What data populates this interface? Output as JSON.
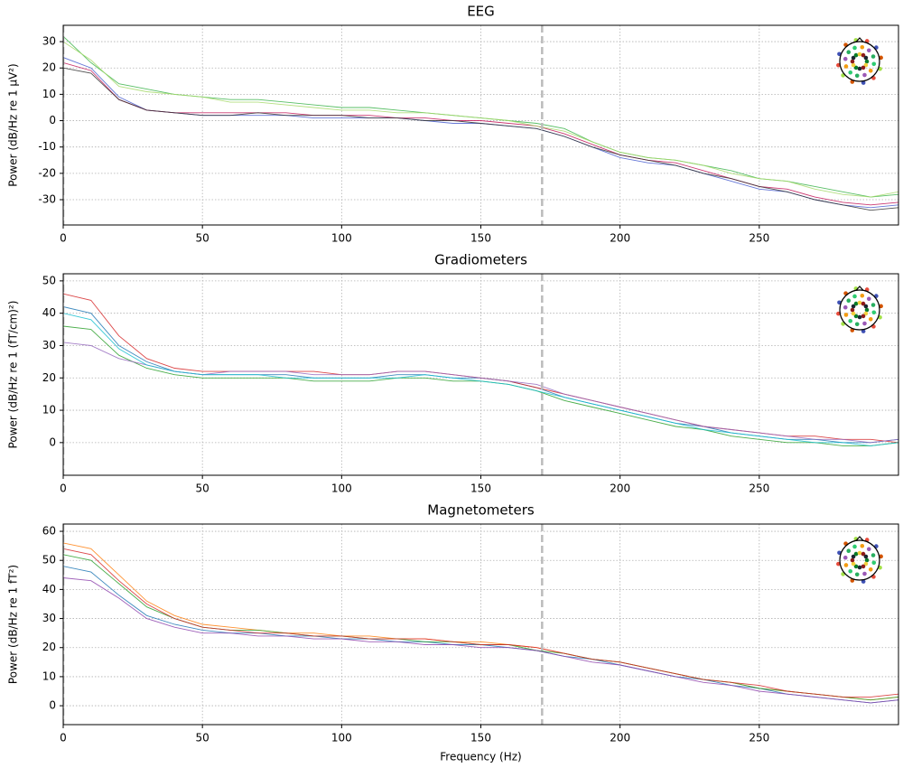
{
  "chart_data": [
    {
      "type": "line",
      "title": "EEG",
      "y_label": "Power (dB/Hz re 1 µV²)",
      "x": [
        0,
        10,
        20,
        30,
        40,
        50,
        60,
        70,
        80,
        90,
        100,
        110,
        120,
        130,
        140,
        150,
        160,
        170,
        180,
        190,
        200,
        210,
        220,
        230,
        240,
        250,
        260,
        270,
        280,
        290,
        300
      ],
      "xlim": [
        0,
        300
      ],
      "xticks": [
        0,
        50,
        100,
        150,
        200,
        250
      ],
      "ylim": [
        -39.6,
        36.2
      ],
      "yticks": [
        -30,
        -20,
        -10,
        0,
        10,
        20,
        30
      ],
      "grid": true,
      "vlines": [
        0,
        172
      ],
      "series": [
        {
          "color": "#3cb44b",
          "values": [
            32,
            22,
            14,
            12,
            10,
            9,
            8,
            8,
            7,
            6,
            5,
            5,
            4,
            3,
            2,
            1,
            0,
            -1,
            -3,
            -8,
            -12,
            -14,
            -15,
            -17,
            -19,
            -22,
            -23,
            -25,
            -27,
            -29,
            -28
          ]
        },
        {
          "color": "#4a5fd0",
          "values": [
            24,
            20,
            9,
            4,
            3,
            2,
            2,
            2,
            2,
            1,
            1,
            1,
            1,
            0,
            -1,
            -1,
            -2,
            -3,
            -6,
            -10,
            -14,
            -16,
            -17,
            -20,
            -23,
            -26,
            -27,
            -30,
            -32,
            -33,
            -32
          ]
        },
        {
          "color": "#c2185b",
          "values": [
            22,
            19,
            8,
            4,
            3,
            3,
            3,
            3,
            3,
            2,
            2,
            2,
            1,
            1,
            0,
            0,
            -1,
            -2,
            -5,
            -9,
            -13,
            -15,
            -16,
            -19,
            -22,
            -25,
            -26,
            -29,
            -31,
            -32,
            -31
          ]
        },
        {
          "color": "#a6d96a",
          "values": [
            30,
            23,
            13,
            11,
            10,
            9,
            7,
            7,
            6,
            5,
            4,
            4,
            3,
            3,
            2,
            1,
            0,
            -2,
            -4,
            -8,
            -12,
            -14,
            -15,
            -17,
            -20,
            -22,
            -23,
            -26,
            -28,
            -29,
            -27
          ]
        },
        {
          "color": "#333333",
          "values": [
            20,
            18,
            8,
            4,
            3,
            2,
            2,
            3,
            2,
            2,
            2,
            1,
            1,
            0,
            0,
            -1,
            -2,
            -3,
            -6,
            -10,
            -13,
            -15,
            -17,
            -20,
            -22,
            -25,
            -27,
            -30,
            -32,
            -34,
            -33
          ]
        }
      ]
    },
    {
      "type": "line",
      "title": "Gradiometers",
      "y_label": "Power (dB/Hz re 1 (fT/cm)²)",
      "x": [
        0,
        10,
        20,
        30,
        40,
        50,
        60,
        70,
        80,
        90,
        100,
        110,
        120,
        130,
        140,
        150,
        160,
        170,
        180,
        190,
        200,
        210,
        220,
        230,
        240,
        250,
        260,
        270,
        280,
        290,
        300
      ],
      "xlim": [
        0,
        300
      ],
      "xticks": [
        0,
        50,
        100,
        150,
        200,
        250
      ],
      "ylim": [
        -10.1,
        52.2
      ],
      "yticks": [
        0,
        10,
        20,
        30,
        40,
        50
      ],
      "grid": true,
      "vlines": [
        0,
        172
      ],
      "series": [
        {
          "color": "#1f77b4",
          "values": [
            42,
            40,
            30,
            25,
            22,
            21,
            21,
            21,
            21,
            20,
            20,
            20,
            21,
            21,
            20,
            20,
            19,
            17,
            14,
            12,
            10,
            8,
            6,
            5,
            3,
            2,
            1,
            1,
            0,
            0,
            1
          ]
        },
        {
          "color": "#d62728",
          "values": [
            46,
            44,
            33,
            26,
            23,
            22,
            22,
            22,
            22,
            22,
            21,
            21,
            22,
            22,
            21,
            20,
            19,
            17,
            15,
            13,
            11,
            9,
            7,
            5,
            4,
            3,
            2,
            2,
            1,
            1,
            0
          ]
        },
        {
          "color": "#2ca02c",
          "values": [
            36,
            35,
            27,
            23,
            21,
            20,
            20,
            20,
            20,
            19,
            19,
            19,
            20,
            20,
            19,
            19,
            18,
            16,
            13,
            11,
            9,
            7,
            5,
            4,
            2,
            1,
            0,
            0,
            -1,
            -1,
            0
          ]
        },
        {
          "color": "#9467bd",
          "values": [
            31,
            30,
            26,
            24,
            22,
            21,
            22,
            22,
            22,
            21,
            21,
            21,
            22,
            22,
            21,
            20,
            19,
            18,
            15,
            13,
            11,
            9,
            7,
            5,
            4,
            3,
            2,
            1,
            1,
            0,
            1
          ]
        },
        {
          "color": "#17becf",
          "values": [
            40,
            38,
            29,
            24,
            22,
            21,
            21,
            21,
            20,
            20,
            20,
            20,
            20,
            21,
            20,
            19,
            18,
            16,
            14,
            12,
            10,
            8,
            6,
            4,
            3,
            2,
            1,
            0,
            0,
            -1,
            0
          ]
        }
      ]
    },
    {
      "type": "line",
      "title": "Magnetometers",
      "y_label": "Power (dB/Hz re 1 fT²)",
      "x_label": "Frequency (Hz)",
      "x": [
        0,
        10,
        20,
        30,
        40,
        50,
        60,
        70,
        80,
        90,
        100,
        110,
        120,
        130,
        140,
        150,
        160,
        170,
        180,
        190,
        200,
        210,
        220,
        230,
        240,
        250,
        260,
        270,
        280,
        290,
        300
      ],
      "xlim": [
        0,
        300
      ],
      "xticks": [
        0,
        50,
        100,
        150,
        200,
        250
      ],
      "ylim": [
        -6.5,
        62.5
      ],
      "yticks": [
        0,
        10,
        20,
        30,
        40,
        50,
        60
      ],
      "grid": true,
      "vlines": [
        0,
        172
      ],
      "series": [
        {
          "color": "#ff7f0e",
          "values": [
            56,
            54,
            45,
            36,
            31,
            28,
            27,
            26,
            25,
            25,
            24,
            24,
            23,
            23,
            22,
            22,
            21,
            20,
            18,
            16,
            15,
            13,
            11,
            9,
            8,
            6,
            5,
            4,
            3,
            2,
            3
          ]
        },
        {
          "color": "#1f77b4",
          "values": [
            48,
            46,
            38,
            31,
            28,
            26,
            25,
            25,
            24,
            24,
            23,
            23,
            22,
            22,
            21,
            21,
            20,
            19,
            17,
            16,
            14,
            12,
            10,
            9,
            7,
            6,
            4,
            3,
            2,
            1,
            2
          ]
        },
        {
          "color": "#2ca02c",
          "values": [
            52,
            50,
            42,
            34,
            30,
            27,
            26,
            26,
            25,
            24,
            24,
            23,
            23,
            22,
            22,
            21,
            21,
            19,
            18,
            16,
            15,
            13,
            11,
            9,
            8,
            6,
            5,
            4,
            3,
            2,
            3
          ]
        },
        {
          "color": "#8e44ad",
          "values": [
            44,
            43,
            37,
            30,
            27,
            25,
            25,
            24,
            24,
            23,
            23,
            22,
            22,
            21,
            21,
            20,
            20,
            19,
            17,
            15,
            14,
            12,
            10,
            8,
            7,
            5,
            4,
            3,
            2,
            1,
            2
          ]
        },
        {
          "color": "#d62728",
          "values": [
            54,
            52,
            43,
            35,
            30,
            27,
            26,
            25,
            25,
            24,
            24,
            23,
            23,
            23,
            22,
            21,
            21,
            20,
            18,
            16,
            15,
            13,
            11,
            9,
            8,
            7,
            5,
            4,
            3,
            3,
            4
          ]
        }
      ]
    }
  ]
}
